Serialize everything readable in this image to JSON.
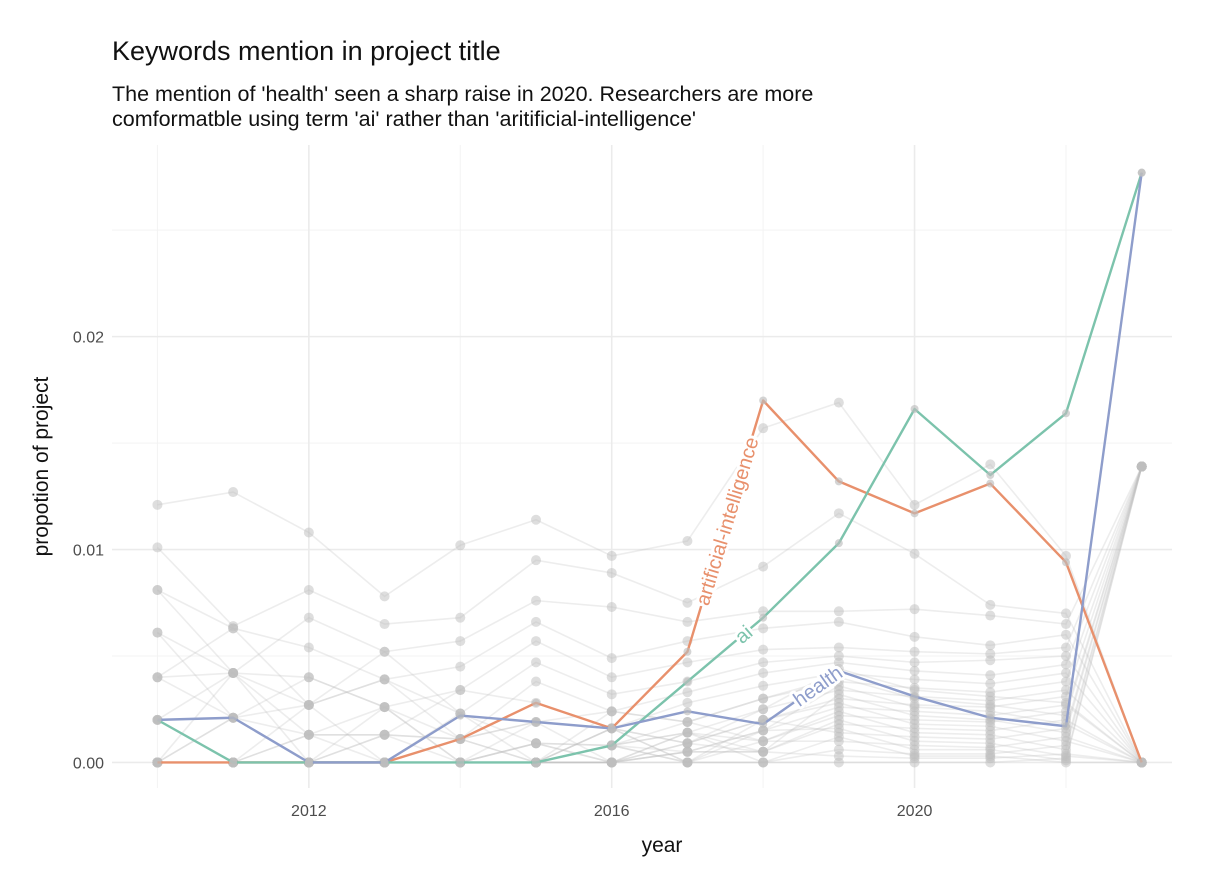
{
  "chart_data": {
    "type": "line",
    "title": "Keywords mention in project title",
    "subtitle_lines": [
      "The mention of 'health' seen a sharp raise in 2020. Researchers are more",
      "comformatble using term 'ai' rather than 'aritificial-intelligence'"
    ],
    "xlabel": "year",
    "ylabel": "propotion of project",
    "xlim": [
      2009.4,
      2023.4
    ],
    "ylim": [
      -0.0012,
      0.029
    ],
    "x_ticks": [
      2012,
      2016,
      2020
    ],
    "x_tick_labels": [
      "2012",
      "2016",
      "2020"
    ],
    "y_ticks": [
      0,
      0.01,
      0.02
    ],
    "y_tick_labels": [
      "0.00",
      "0.01",
      "0.02"
    ],
    "x": [
      2010,
      2011,
      2012,
      2013,
      2014,
      2015,
      2016,
      2017,
      2018,
      2019,
      2020,
      2021,
      2022,
      2023
    ],
    "grid": true,
    "legend": "none (direct labels on lines)",
    "series": [
      {
        "name": "artificial-intelligence",
        "color": "#E8906C",
        "values": [
          0,
          0,
          0,
          0,
          0.0011,
          0.0028,
          0.0016,
          0.0052,
          0.017,
          0.0132,
          0.0117,
          0.0131,
          0.0094,
          0
        ]
      },
      {
        "name": "ai",
        "color": "#7CC3AC",
        "values": [
          0.002,
          0,
          0,
          0,
          0,
          0,
          0.0008,
          0.0038,
          0.0068,
          0.0103,
          0.0166,
          0.0135,
          0.0164,
          0.0277
        ]
      },
      {
        "name": "health",
        "color": "#8E9DCB",
        "values": [
          0.002,
          0.0021,
          0,
          0,
          0.0022,
          0.0019,
          0.0016,
          0.0024,
          0.0018,
          0.0043,
          0.0031,
          0.0021,
          0.0017,
          0.0277
        ]
      }
    ],
    "background_series_color": "#bdbdbd",
    "background_series": [
      [
        0.0121,
        0.0127,
        0.0108,
        0.0078,
        0.0102,
        0.0114,
        0.0097,
        0.0104,
        0.0157,
        0.0169,
        0.0121,
        0.014,
        0.0097,
        0
      ],
      [
        0.0101,
        0.0064,
        0.0081,
        0.0065,
        0.0068,
        0.0095,
        0.0089,
        0.0075,
        0.0092,
        0.0117,
        0.0098,
        0.0074,
        0.007,
        0
      ],
      [
        0.0081,
        0.0042,
        0.0068,
        0.0052,
        0.0057,
        0.0076,
        0.0073,
        0.0066,
        0.0071,
        0.0071,
        0.0072,
        0.0069,
        0.0065,
        0.0139
      ],
      [
        0.0081,
        0.0063,
        0.0054,
        0.0039,
        0.0045,
        0.0066,
        0.0049,
        0.0057,
        0.0063,
        0.0066,
        0.0059,
        0.0055,
        0.006,
        0
      ],
      [
        0.0061,
        0.0042,
        0.004,
        0.0026,
        0.0034,
        0.0057,
        0.004,
        0.0047,
        0.0053,
        0.0054,
        0.0052,
        0.0051,
        0.0054,
        0.0139
      ],
      [
        0.0061,
        0.0021,
        0.0027,
        0.0052,
        0.0023,
        0.0047,
        0.0032,
        0.0038,
        0.0047,
        0.005,
        0.0047,
        0.0048,
        0.005,
        0
      ],
      [
        0.004,
        0.0063,
        0.0027,
        0.0039,
        0.0011,
        0.0038,
        0.0024,
        0.0033,
        0.0042,
        0.0047,
        0.0043,
        0.0041,
        0.0046,
        0.0139
      ],
      [
        0.004,
        0.0042,
        0.0013,
        0.0013,
        0.0034,
        0.0028,
        0.0016,
        0.0028,
        0.0036,
        0.0042,
        0.0039,
        0.0037,
        0.0042,
        0
      ],
      [
        0.004,
        0.0021,
        0.004,
        0.0026,
        0.0011,
        0.0019,
        0.0024,
        0.0019,
        0.003,
        0.0038,
        0.0035,
        0.0033,
        0.0038,
        0.0139
      ],
      [
        0.002,
        0.0042,
        0.0027,
        0.0039,
        0.0023,
        0.0009,
        0.0008,
        0.0014,
        0.0025,
        0.0034,
        0.0031,
        0.0029,
        0.0034,
        0
      ],
      [
        0.002,
        0.0021,
        0.0013,
        0.0013,
        0.0011,
        0.0019,
        0.0016,
        0.0009,
        0.002,
        0.003,
        0.0027,
        0.0026,
        0.0031,
        0.0139
      ],
      [
        0.002,
        0,
        0.0013,
        0.0026,
        0,
        0.0009,
        0.0008,
        0.0005,
        0.0015,
        0.0026,
        0.0024,
        0.0022,
        0.0027,
        0
      ],
      [
        0,
        0.0021,
        0,
        0.0013,
        0.0011,
        0,
        0.0008,
        0.0019,
        0.001,
        0.0022,
        0.002,
        0.0019,
        0.0024,
        0.0139
      ],
      [
        0,
        0,
        0.0013,
        0,
        0,
        0.0009,
        0,
        0.0009,
        0.0005,
        0.0018,
        0.0016,
        0.0015,
        0.002,
        0
      ],
      [
        0,
        0.0021,
        0,
        0,
        0.0011,
        0,
        0.0016,
        0,
        0.002,
        0.0014,
        0.0012,
        0.0011,
        0.0016,
        0.0139
      ],
      [
        0,
        0,
        0,
        0.0013,
        0,
        0.0019,
        0,
        0.0014,
        0.001,
        0.001,
        0.0008,
        0.0007,
        0.0012,
        0
      ],
      [
        0.002,
        0,
        0.0027,
        0,
        0.0023,
        0,
        0.0008,
        0,
        0,
        0.0006,
        0.0004,
        0.0004,
        0.0008,
        0.0139
      ],
      [
        0,
        0.0042,
        0,
        0.0026,
        0,
        0.0009,
        0,
        0.0005,
        0.0005,
        0.0003,
        0.0002,
        0.0002,
        0.0004,
        0
      ],
      [
        0,
        0,
        0,
        0,
        0,
        0,
        0,
        0,
        0,
        0,
        0,
        0,
        0.0002,
        0.0139
      ],
      [
        0,
        0,
        0,
        0,
        0,
        0,
        0.0016,
        0.0009,
        0.0025,
        0.0044,
        0.0034,
        0.0031,
        0.0028,
        0
      ],
      [
        0,
        0,
        0,
        0,
        0,
        0,
        0.0024,
        0.0019,
        0.003,
        0.004,
        0.003,
        0.0027,
        0.0022,
        0.0139
      ],
      [
        0,
        0,
        0,
        0,
        0,
        0,
        0,
        0.0005,
        0.0015,
        0.0036,
        0.0026,
        0.0024,
        0.0018,
        0
      ],
      [
        0,
        0,
        0,
        0,
        0,
        0,
        0.0008,
        0.0014,
        0.0005,
        0.0032,
        0.0022,
        0.002,
        0.0014,
        0.0139
      ],
      [
        0,
        0,
        0,
        0,
        0,
        0,
        0,
        0.0009,
        0.002,
        0.0028,
        0.0018,
        0.0017,
        0.001,
        0
      ],
      [
        0,
        0,
        0,
        0,
        0,
        0,
        0.0016,
        0,
        0.001,
        0.0024,
        0.0014,
        0.0013,
        0.0006,
        0.0139
      ],
      [
        0,
        0,
        0,
        0,
        0,
        0,
        0,
        0.0005,
        0.0005,
        0.002,
        0.001,
        0.0009,
        0.0003,
        0
      ],
      [
        0,
        0,
        0,
        0,
        0,
        0,
        0.0008,
        0,
        0.0015,
        0.0016,
        0.0006,
        0.0006,
        0.0001,
        0.0139
      ],
      [
        0,
        0,
        0,
        0,
        0,
        0,
        0,
        0.0014,
        0,
        0.0012,
        0.0003,
        0.0003,
        0,
        0
      ]
    ]
  }
}
